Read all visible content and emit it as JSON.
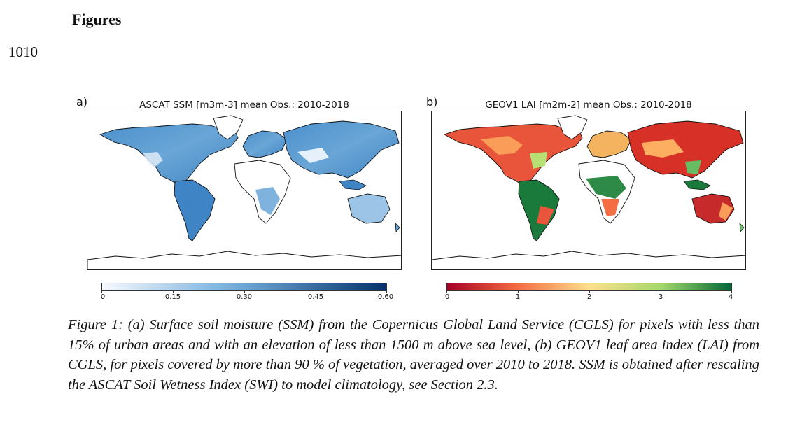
{
  "heading": "Figures",
  "line_number": "1010",
  "panels": [
    {
      "letter": "a)",
      "title": "ASCAT SSM [m3m-3] mean Obs.: 2010-2018",
      "map": "world-map-soil-moisture",
      "colorbar": {
        "min": 0,
        "max": 0.6,
        "ticks": [
          "0",
          "0.15",
          "0.30",
          "0.45",
          "0.60"
        ],
        "colors": [
          "#f5f9ff",
          "#6aa6d6",
          "#08306b"
        ]
      }
    },
    {
      "letter": "b)",
      "title": "GEOV1 LAI [m2m-2] mean Obs.: 2010-2018",
      "map": "world-map-leaf-area-index",
      "colorbar": {
        "min": 0,
        "max": 4,
        "ticks": [
          "0",
          "1",
          "2",
          "3",
          "4"
        ],
        "colors": [
          "#a50026",
          "#f46d43",
          "#fee08b",
          "#a6d96a",
          "#006837"
        ]
      }
    }
  ],
  "caption": "Figure 1: (a) Surface soil moisture (SSM) from the Copernicus Global Land Service (CGLS) for pixels with less than 15% of urban areas and with an elevation of less than 1500 m above sea level, (b) GEOV1 leaf area index (LAI) from CGLS, for pixels covered by more than 90 % of vegetation, averaged over 2010 to 2018. SSM is obtained after rescaling the ASCAT Soil Wetness Index (SWI) to model climatology, see Section 2.3.",
  "colors": {
    "ocean": "#ffffff",
    "coast": "#111111"
  }
}
